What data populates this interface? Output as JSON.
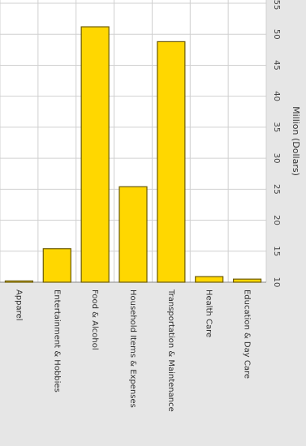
{
  "chart_data": {
    "type": "bar",
    "orientation": "vertical",
    "categories": [
      "Apparel",
      "Entertainment & Hobbies",
      "Food & Alcohol",
      "Household Items & Expenses",
      "Transportation & Maintenance",
      "Health Care",
      "Education & Day Care"
    ],
    "values": [
      10.2,
      15.4,
      51.2,
      25.4,
      48.8,
      10.9,
      10.5
    ],
    "ylabel": "Million (Dollars)",
    "xlabel": "",
    "title": "",
    "ylim": [
      10,
      55
    ],
    "yticks": [
      10,
      15,
      20,
      25,
      30,
      35,
      40,
      45,
      50,
      55
    ],
    "y_axis_side": "right",
    "tick_label_rotation": "vertical",
    "grid": true,
    "legend": "none",
    "bar_color": "#ffd700",
    "bar_stroke": "#6b5a00",
    "plot_background": "#ffffff",
    "page_background": "#e6e6e6",
    "grid_color": "#d0d0d0"
  }
}
